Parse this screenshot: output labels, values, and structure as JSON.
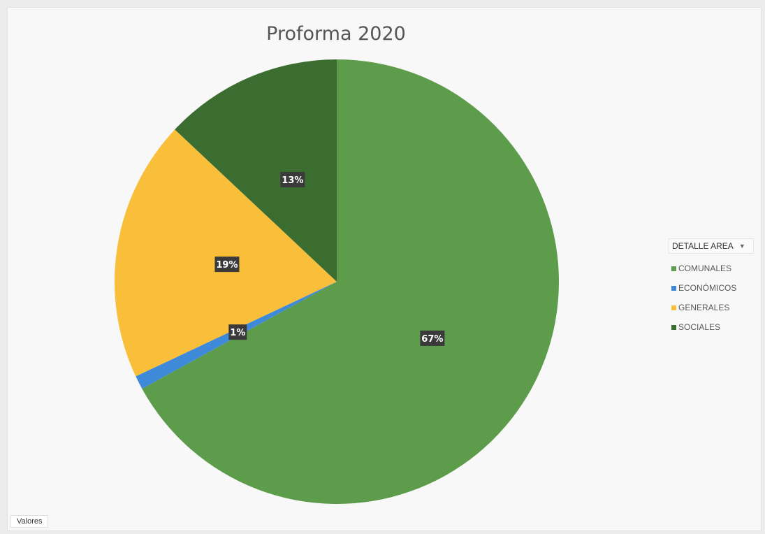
{
  "chart_data": {
    "type": "pie",
    "title": "Proforma 2020",
    "categories": [
      "COMUNALES",
      "ECONÓMICOS",
      "GENERALES",
      "SOCIALES"
    ],
    "values": [
      67,
      1,
      19,
      13
    ],
    "data_labels": [
      "67%",
      "1%",
      "19%",
      "13%"
    ],
    "colors": [
      "#5d9c4a",
      "#3f8ad8",
      "#f9bf3b",
      "#3b6d30"
    ],
    "legend_placement": "right"
  },
  "legend": {
    "title": "DETALLE AREA",
    "dropdown_icon": "chevron-down-icon"
  },
  "values_button": {
    "label": "Valores"
  }
}
